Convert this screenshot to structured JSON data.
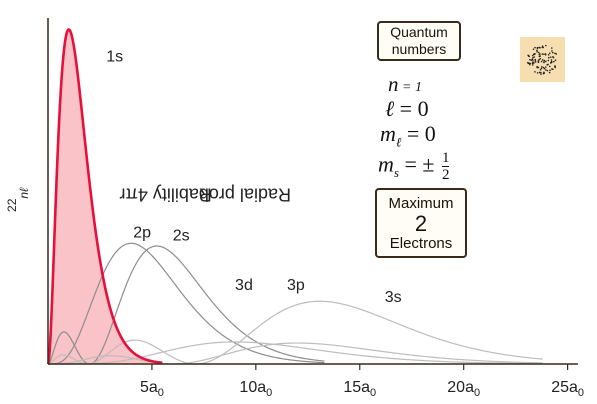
{
  "chart_data": {
    "type": "line",
    "ylabel": "Radial probability 4πr²R²nℓ",
    "ylabel_main": "Radial probability 4πr",
    "ylabel_sup": "2",
    "ylabel_R": "R",
    "ylabel_sup2": "2",
    "ylabel_sub": "nℓ",
    "xlabel": "",
    "xlim": [
      0,
      25.5
    ],
    "ylim": [
      0,
      0.56
    ],
    "x_ticks": [
      {
        "value": 5,
        "label": "5a",
        "sub": "0"
      },
      {
        "value": 10,
        "label": "10a",
        "sub": "0"
      },
      {
        "value": 15,
        "label": "15a",
        "sub": "0"
      },
      {
        "value": 20,
        "label": "20a",
        "sub": "0"
      },
      {
        "value": 25,
        "label": "25a",
        "sub": "0"
      }
    ],
    "grid": false,
    "series": [
      {
        "name": "1s",
        "n": 1,
        "l": 0,
        "color": "#e8103a",
        "filled": true,
        "fill": "#f9c3c7"
      },
      {
        "name": "2p",
        "n": 2,
        "l": 1,
        "color": "#8d8d8d",
        "filled": false
      },
      {
        "name": "2s",
        "n": 2,
        "l": 0,
        "color": "#8d8d8d",
        "filled": false
      },
      {
        "name": "3d",
        "n": 3,
        "l": 2,
        "color": "#bdbdbd",
        "filled": false
      },
      {
        "name": "3p",
        "n": 3,
        "l": 1,
        "color": "#bdbdbd",
        "filled": false
      },
      {
        "name": "3s",
        "n": 3,
        "l": 0,
        "color": "#bdbdbd",
        "filled": false
      }
    ],
    "curve_labels": [
      {
        "text": "1s",
        "x": 2.8,
        "y": 0.49
      },
      {
        "text": "2p",
        "x": 4.1,
        "y": 0.205
      },
      {
        "text": "2s",
        "x": 6.0,
        "y": 0.2
      },
      {
        "text": "3d",
        "x": 9.0,
        "y": 0.12
      },
      {
        "text": "3p",
        "x": 11.5,
        "y": 0.12
      },
      {
        "text": "3s",
        "x": 16.2,
        "y": 0.1
      }
    ]
  },
  "quantum_numbers": {
    "title_line1": "Quantum",
    "title_line2": "numbers",
    "n_symbol": "n",
    "n_value": " = 1",
    "l_symbol": "ℓ",
    "l_value": " = 0",
    "ml_symbol": "m",
    "ml_sub": "ℓ",
    "ml_value": " = 0",
    "ms_symbol": "m",
    "ms_sub": "s",
    "ms_value": " = ±",
    "ms_num": "1",
    "ms_den": "2"
  },
  "maximum": {
    "line1": "Maximum",
    "line2": "2",
    "line3": "Electrons"
  },
  "colors": {
    "axis": "#3a2a1a",
    "accent": "#e8103a",
    "thumb_bg": "#f7deb0"
  }
}
